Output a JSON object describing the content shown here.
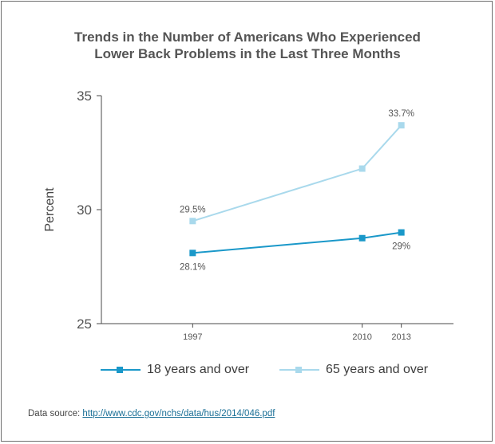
{
  "colors": {
    "series_dark": "#1a98c9",
    "series_light": "#a9d9ec",
    "axis": "#4a4a4a",
    "text": "#555555",
    "link": "#1a6f96"
  },
  "source": {
    "label": "Data source:",
    "url_text": "http://www.cdc.gov/nchs/data/hus/2014/046.pdf"
  },
  "chart_data": {
    "type": "line",
    "title": "Trends in the Number of Americans Who Experienced",
    "title_line2": "Lower Back Problems in the Last Three Months",
    "xlabel": "",
    "ylabel": "Percent",
    "x": [
      1997,
      2010,
      2013
    ],
    "xlim": [
      1990,
      2017
    ],
    "ylim": [
      25,
      35
    ],
    "yticks": [
      25,
      30,
      35
    ],
    "grid": false,
    "legend_position": "bottom",
    "series": [
      {
        "name": "18 years and over",
        "values": [
          28.1,
          28.75,
          29.0
        ],
        "color_key": "series_dark",
        "labels": [
          "28.1%",
          "",
          "29%"
        ],
        "label_side": "below"
      },
      {
        "name": "65 years and over",
        "values": [
          29.5,
          31.8,
          33.7
        ],
        "color_key": "series_light",
        "labels": [
          "29.5%",
          "",
          "33.7%"
        ],
        "label_side": "above"
      }
    ]
  }
}
